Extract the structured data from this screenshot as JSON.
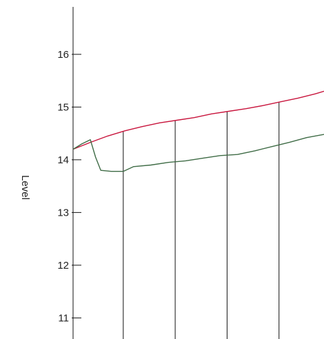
{
  "chart_data": {
    "type": "line",
    "title": "",
    "xlabel": "",
    "ylabel": "Level",
    "ylim": [
      10.6,
      16.9
    ],
    "xlim": [
      0,
      14.5
    ],
    "yticks": [
      11,
      12,
      13,
      14,
      15,
      16
    ],
    "ytick_labels": [
      "11",
      "12",
      "13",
      "14",
      "15",
      "16"
    ],
    "grid": false,
    "vertical_lines": [
      2.9,
      5.9,
      8.9,
      11.9
    ],
    "series": [
      {
        "color": "#c8143c",
        "x": [
          0,
          1,
          2,
          3,
          4,
          5,
          6,
          7,
          8,
          9,
          10,
          11,
          12,
          13,
          14,
          14.5
        ],
        "y": [
          14.2,
          14.33,
          14.45,
          14.55,
          14.63,
          14.7,
          14.75,
          14.8,
          14.87,
          14.92,
          14.97,
          15.03,
          15.1,
          15.17,
          15.25,
          15.3
        ]
      },
      {
        "color": "#3e6b45",
        "x": [
          0,
          0.5,
          1.0,
          1.3,
          1.6,
          2.2,
          2.9,
          3.5,
          4.5,
          5.5,
          6.5,
          7.5,
          8.5,
          9.5,
          10.5,
          11.5,
          12.5,
          13.5,
          14.5
        ],
        "y": [
          14.2,
          14.3,
          14.38,
          14.05,
          13.8,
          13.78,
          13.78,
          13.87,
          13.9,
          13.95,
          13.98,
          14.03,
          14.08,
          14.1,
          14.17,
          14.25,
          14.33,
          14.42,
          14.48
        ]
      }
    ]
  }
}
